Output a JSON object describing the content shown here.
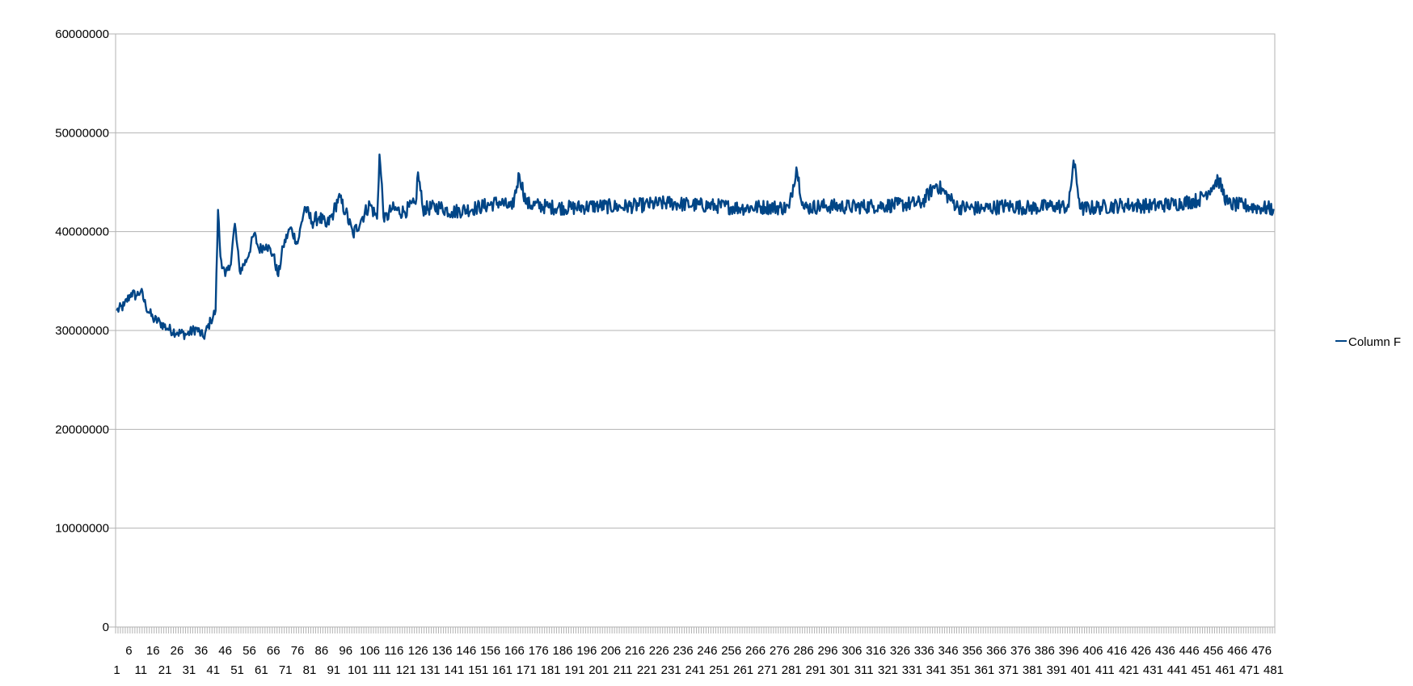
{
  "chart_data": {
    "type": "line",
    "title": "",
    "xlabel": "",
    "ylabel": "",
    "ylim": [
      0,
      60000000
    ],
    "yticks": [
      0,
      10000000,
      20000000,
      30000000,
      40000000,
      50000000,
      60000000
    ],
    "ytick_labels": [
      "0",
      "10000000",
      "20000000",
      "30000000",
      "40000000",
      "50000000",
      "60000000"
    ],
    "x_count": 481,
    "x_label_first": 1,
    "x_label_step": 5,
    "grid": true,
    "legend_position": "right",
    "series": [
      {
        "name": "Column F",
        "color": "#004586",
        "key_points": [
          [
            1,
            32000000
          ],
          [
            4,
            32500000
          ],
          [
            7,
            33800000
          ],
          [
            9,
            33500000
          ],
          [
            11,
            34000000
          ],
          [
            13,
            32500000
          ],
          [
            16,
            31200000
          ],
          [
            19,
            30800000
          ],
          [
            22,
            30200000
          ],
          [
            26,
            29800000
          ],
          [
            30,
            29600000
          ],
          [
            34,
            30200000
          ],
          [
            37,
            29300000
          ],
          [
            40,
            31000000
          ],
          [
            42,
            32000000
          ],
          [
            43,
            42200000
          ],
          [
            44,
            37500000
          ],
          [
            46,
            35500000
          ],
          [
            48,
            36500000
          ],
          [
            50,
            40800000
          ],
          [
            52,
            36000000
          ],
          [
            55,
            37200000
          ],
          [
            58,
            39800000
          ],
          [
            60,
            38200000
          ],
          [
            63,
            38700000
          ],
          [
            66,
            37600000
          ],
          [
            68,
            35500000
          ],
          [
            70,
            38500000
          ],
          [
            73,
            40400000
          ],
          [
            76,
            38800000
          ],
          [
            79,
            42500000
          ],
          [
            82,
            41000000
          ],
          [
            85,
            41500000
          ],
          [
            88,
            40500000
          ],
          [
            91,
            42000000
          ],
          [
            93,
            43500000
          ],
          [
            96,
            42000000
          ],
          [
            99,
            39700000
          ],
          [
            103,
            41500000
          ],
          [
            106,
            42800000
          ],
          [
            109,
            41300000
          ],
          [
            110,
            47800000
          ],
          [
            112,
            41000000
          ],
          [
            115,
            42300000
          ],
          [
            120,
            42000000
          ],
          [
            125,
            42800000
          ],
          [
            126,
            46000000
          ],
          [
            128,
            42300000
          ],
          [
            135,
            42500000
          ],
          [
            140,
            42000000
          ],
          [
            150,
            42400000
          ],
          [
            160,
            43000000
          ],
          [
            165,
            42300000
          ],
          [
            168,
            45800000
          ],
          [
            171,
            42800000
          ],
          [
            180,
            42500000
          ],
          [
            190,
            42400000
          ],
          [
            200,
            42600000
          ],
          [
            210,
            42500000
          ],
          [
            220,
            42700000
          ],
          [
            230,
            42900000
          ],
          [
            240,
            42700000
          ],
          [
            250,
            42600000
          ],
          [
            260,
            42400000
          ],
          [
            270,
            42500000
          ],
          [
            280,
            42400000
          ],
          [
            283,
            46500000
          ],
          [
            286,
            42400000
          ],
          [
            295,
            42600000
          ],
          [
            305,
            42500000
          ],
          [
            315,
            42600000
          ],
          [
            325,
            42700000
          ],
          [
            335,
            42900000
          ],
          [
            341,
            44800000
          ],
          [
            350,
            42500000
          ],
          [
            360,
            42300000
          ],
          [
            370,
            42600000
          ],
          [
            380,
            42400000
          ],
          [
            390,
            42600000
          ],
          [
            396,
            42500000
          ],
          [
            398,
            47200000
          ],
          [
            401,
            42300000
          ],
          [
            410,
            42500000
          ],
          [
            420,
            42700000
          ],
          [
            430,
            42600000
          ],
          [
            440,
            42800000
          ],
          [
            450,
            43200000
          ],
          [
            455,
            44400000
          ],
          [
            458,
            45300000
          ],
          [
            462,
            42800000
          ],
          [
            470,
            42600000
          ],
          [
            476,
            42400000
          ],
          [
            481,
            42300000
          ]
        ]
      }
    ]
  }
}
